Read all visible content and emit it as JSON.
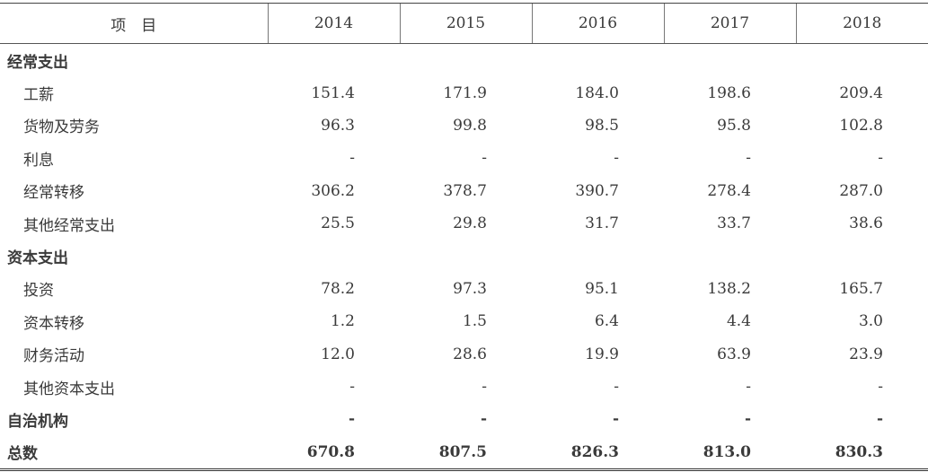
{
  "table": {
    "header": [
      "项　目",
      "2014",
      "2015",
      "2016",
      "2017",
      "2018"
    ],
    "sections": [
      {
        "title": "经常支出",
        "items": [
          {
            "label": "工薪",
            "values": [
              "151.4",
              "171.9",
              "184.0",
              "198.6",
              "209.4"
            ]
          },
          {
            "label": "货物及劳务",
            "values": [
              "96.3",
              "99.8",
              "98.5",
              "95.8",
              "102.8"
            ]
          },
          {
            "label": "利息",
            "values": [
              "-",
              "-",
              "-",
              "-",
              "-"
            ]
          },
          {
            "label": "经常转移",
            "values": [
              "306.2",
              "378.7",
              "390.7",
              "278.4",
              "287.0"
            ]
          },
          {
            "label": "其他经常支出",
            "values": [
              "25.5",
              "29.8",
              "31.7",
              "33.7",
              "38.6"
            ]
          }
        ]
      },
      {
        "title": "资本支出",
        "items": [
          {
            "label": "投资",
            "values": [
              "78.2",
              "97.3",
              "95.1",
              "138.2",
              "165.7"
            ]
          },
          {
            "label": "资本转移",
            "values": [
              "1.2",
              "1.5",
              "6.4",
              "4.4",
              "3.0"
            ]
          },
          {
            "label": "财务活动",
            "values": [
              "12.0",
              "28.6",
              "19.9",
              "63.9",
              "23.9"
            ]
          },
          {
            "label": "其他资本支出",
            "values": [
              "-",
              "-",
              "-",
              "-",
              "-"
            ]
          }
        ]
      }
    ],
    "other": {
      "label": "自治机构",
      "values": [
        "-",
        "-",
        "-",
        "-",
        "-"
      ]
    },
    "total": {
      "label": "总数",
      "values": [
        "670.8",
        "807.5",
        "826.3",
        "813.0",
        "830.3"
      ]
    }
  }
}
